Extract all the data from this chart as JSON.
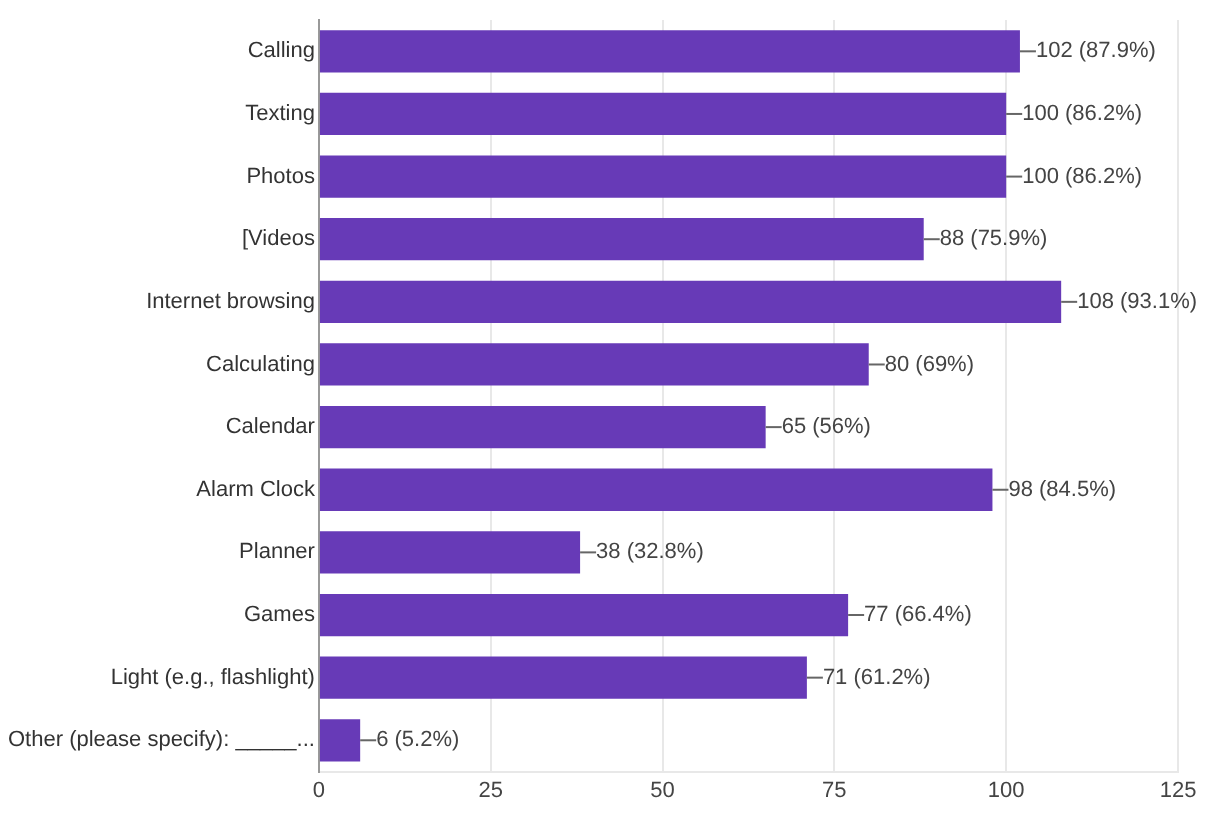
{
  "chart_data": {
    "type": "bar",
    "orientation": "horizontal",
    "categories": [
      "Calling",
      "Texting",
      "Photos",
      "[Videos",
      "Internet browsing",
      "Calculating",
      "Calendar",
      "Alarm Clock",
      "Planner",
      "Games",
      "Light (e.g., flashlight)",
      "Other (please specify): _____..."
    ],
    "values": [
      102,
      100,
      100,
      88,
      108,
      80,
      65,
      98,
      38,
      77,
      71,
      6
    ],
    "value_labels": [
      "102 (87.9%)",
      "100 (86.2%)",
      "100 (86.2%)",
      "88 (75.9%)",
      "108 (93.1%)",
      "80 (69%)",
      "65 (56%)",
      "98 (84.5%)",
      "38 (32.8%)",
      "77 (66.4%)",
      "71 (61.2%)",
      "6 (5.2%)"
    ],
    "color": "#673ab7",
    "xlim": [
      0,
      125
    ],
    "xticks": [
      0,
      25,
      50,
      75,
      100,
      125
    ],
    "grid": "x",
    "legend": false
  }
}
